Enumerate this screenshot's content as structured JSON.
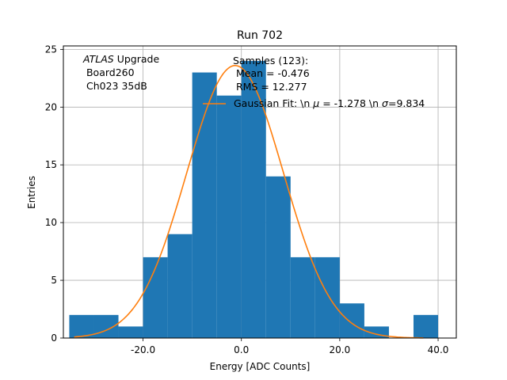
{
  "chart_data": {
    "type": "bar",
    "title": "Run 702",
    "xlabel": "Energy [ADC Counts]",
    "ylabel": "Entries",
    "xlim": [
      -36.2,
      43.7
    ],
    "ylim": [
      0,
      25.3
    ],
    "grid": true,
    "x_ticks": [
      -20,
      0,
      20,
      40
    ],
    "x_tick_labels": [
      "-20.0",
      "0.0",
      "20.0",
      "40.0"
    ],
    "y_ticks": [
      0,
      5,
      10,
      15,
      20,
      25
    ],
    "y_tick_labels": [
      "0",
      "5",
      "10",
      "15",
      "20",
      "25"
    ],
    "histogram": {
      "name": "Samples (123)",
      "color": "#1f77b4",
      "bins": [
        {
          "x0": -35,
          "x1": -30,
          "count": 2
        },
        {
          "x0": -30,
          "x1": -25,
          "count": 2
        },
        {
          "x0": -25,
          "x1": -20,
          "count": 1
        },
        {
          "x0": -20,
          "x1": -15,
          "count": 7
        },
        {
          "x0": -15,
          "x1": -10,
          "count": 9
        },
        {
          "x0": -10,
          "x1": -5,
          "count": 23
        },
        {
          "x0": -5,
          "x1": 0,
          "count": 21
        },
        {
          "x0": 0,
          "x1": 5,
          "count": 24
        },
        {
          "x0": 5,
          "x1": 10,
          "count": 14
        },
        {
          "x0": 10,
          "x1": 15,
          "count": 7
        },
        {
          "x0": 15,
          "x1": 20,
          "count": 7
        },
        {
          "x0": 20,
          "x1": 25,
          "count": 3
        },
        {
          "x0": 25,
          "x1": 30,
          "count": 1
        },
        {
          "x0": 30,
          "x1": 35,
          "count": 0
        },
        {
          "x0": 35,
          "x1": 40,
          "count": 2
        }
      ]
    },
    "fit": {
      "name": "Gaussian Fit",
      "color": "#ff7f0e",
      "mu": -1.278,
      "sigma": 9.834,
      "amplitude": 23.6,
      "x_range": [
        -34,
        37
      ]
    },
    "annotations": {
      "experiment_italic": "ATLAS",
      "experiment_rest": " Upgrade",
      "board": " Board260",
      "channel": " Ch023 35dB",
      "samples_line1": "Samples (123):",
      "samples_line2": " Mean = -0.476",
      "samples_line3": " RMS = 12.277"
    },
    "legend": {
      "placement": "top-right",
      "fit_label_pre": "Gaussian Fit: \\n ",
      "mu_symbol": "μ",
      "fit_label_mid": " = -1.278 \\n ",
      "sigma_symbol": "σ",
      "fit_label_post": "=9.834"
    }
  }
}
